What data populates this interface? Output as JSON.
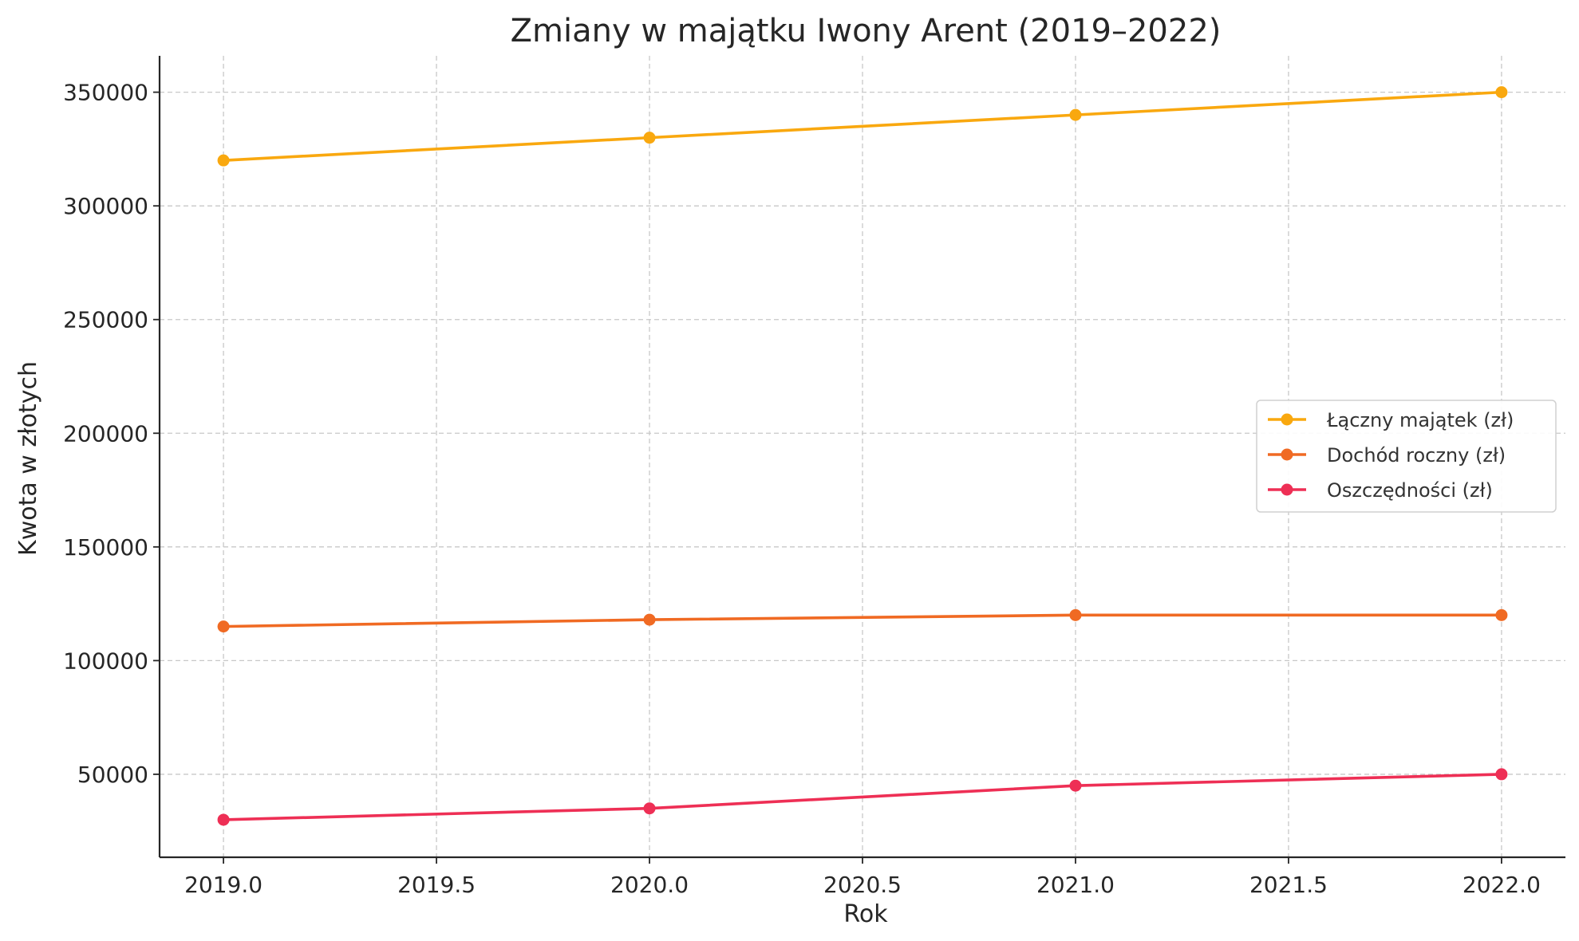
{
  "chart_data": {
    "type": "line",
    "title": "Zmiany w majątku Iwony Arent (2019–2022)",
    "xlabel": "Rok",
    "ylabel": "Kwota w złotych",
    "x": [
      2019,
      2020,
      2021,
      2022
    ],
    "xlim": [
      2018.85,
      2022.15
    ],
    "ylim": [
      13500,
      366000
    ],
    "x_ticks": [
      2019.0,
      2019.5,
      2020.0,
      2020.5,
      2021.0,
      2021.5,
      2022.0
    ],
    "x_tick_labels": [
      "2019.0",
      "2019.5",
      "2020.0",
      "2020.5",
      "2021.0",
      "2021.5",
      "2022.0"
    ],
    "y_ticks": [
      50000,
      100000,
      150000,
      200000,
      250000,
      300000,
      350000
    ],
    "y_tick_labels": [
      "50000",
      "100000",
      "150000",
      "200000",
      "250000",
      "300000",
      "350000"
    ],
    "grid": true,
    "legend_position": "center-right",
    "series": [
      {
        "name": "Łączny majątek (zł)",
        "color": "#F9A80F",
        "values": [
          320000,
          330000,
          340000,
          350000
        ]
      },
      {
        "name": "Dochód roczny (zł)",
        "color": "#F06A23",
        "values": [
          115000,
          118000,
          120000,
          120000
        ]
      },
      {
        "name": "Oszczędności (zł)",
        "color": "#EE2F55",
        "values": [
          30000,
          35000,
          45000,
          50000
        ]
      }
    ]
  }
}
